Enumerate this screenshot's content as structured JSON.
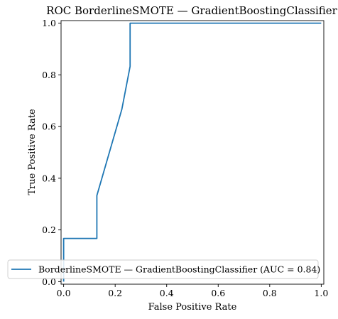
{
  "chart_data": {
    "type": "line",
    "title": "ROC BorderlineSMOTE — GradientBoostingClassifier",
    "xlabel": "False Positive Rate",
    "ylabel": "True Positive Rate",
    "xlim": [
      -0.01,
      1.01
    ],
    "ylim": [
      -0.01,
      1.01
    ],
    "xticks": [
      "0.0",
      "0.2",
      "0.4",
      "0.6",
      "0.8",
      "1.0"
    ],
    "yticks": [
      "0.0",
      "0.2",
      "0.4",
      "0.6",
      "0.8",
      "1.0"
    ],
    "grid": false,
    "legend_position": "lower-right",
    "series": [
      {
        "name": "BorderlineSMOTE — GradientBoostingClassifier (AUC = 0.84)",
        "color": "#1f77b4",
        "x": [
          0.0,
          0.0,
          0.0,
          0.129,
          0.129,
          0.226,
          0.258,
          0.258,
          1.0
        ],
        "y": [
          0.0,
          0.1,
          0.167,
          0.167,
          0.333,
          0.667,
          0.833,
          1.0,
          1.0
        ]
      }
    ]
  }
}
